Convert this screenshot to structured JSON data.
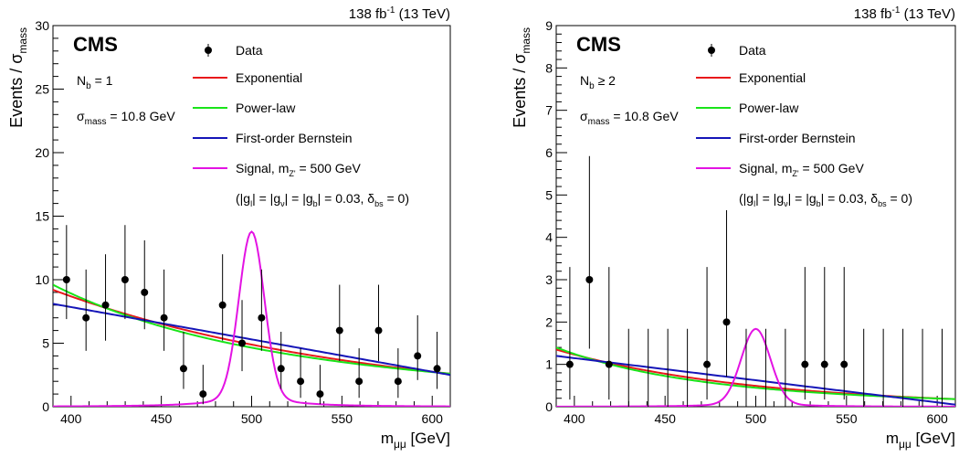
{
  "chart_data": [
    {
      "type": "scatter",
      "lumi_text": "138 fb",
      "lumi_sup": "-1",
      "energy_text": " (13 TeV)",
      "experiment": "CMS",
      "category_text": "N",
      "category_sub": "b",
      "category_value": " = 1",
      "sigma_symbol": "σ",
      "sigma_sub": "mass",
      "sigma_value": " = 10.8 GeV",
      "ylabel_main": "Events / σ",
      "ylabel_sub": "mass",
      "xlabel_main": "m",
      "xlabel_sub": "μμ",
      "xlabel_unit": " [GeV]",
      "xlim": [
        390,
        610
      ],
      "ylim": [
        0,
        30
      ],
      "xticks": [
        400,
        450,
        500,
        550,
        600
      ],
      "yticks": [
        0,
        5,
        10,
        15,
        20,
        25,
        30
      ],
      "legend": {
        "data": "Data",
        "exponential": "Exponential",
        "powerlaw": "Power-law",
        "bernstein": "First-order Bernstein",
        "signal_prefix": "Signal, m",
        "signal_sub": "Z'",
        "signal_suffix": " = 500 GeV",
        "couplings": "(|g_l| = |g_ν| = |g_b| = 0.03, δ_bs = 0)"
      },
      "colors": {
        "exponential": "#e8191b",
        "powerlaw": "#19e419",
        "bernstein": "#1515b8",
        "signal": "#e313e3",
        "data": "#000000"
      },
      "data": {
        "x": [
          397.5,
          408.3,
          419.1,
          429.9,
          440.7,
          451.5,
          462.3,
          473.1,
          483.9,
          494.7,
          505.5,
          516.3,
          527.1,
          537.9,
          548.7,
          559.5,
          570.3,
          581.1,
          591.9,
          602.7
        ],
        "y": [
          10,
          7,
          8,
          10,
          9,
          7,
          3,
          1,
          8,
          5,
          7,
          3,
          2,
          1,
          6,
          2,
          6,
          2,
          4,
          3
        ],
        "err_low": [
          3.1,
          2.6,
          2.8,
          3.1,
          2.9,
          2.6,
          1.6,
          0.8,
          2.8,
          2.2,
          2.6,
          1.6,
          1.3,
          0.8,
          2.4,
          1.3,
          2.4,
          1.3,
          1.9,
          1.6
        ],
        "err_high": [
          4.3,
          3.8,
          4.0,
          4.3,
          4.1,
          3.8,
          2.9,
          2.3,
          4.0,
          3.4,
          3.8,
          2.9,
          2.6,
          2.3,
          3.6,
          2.6,
          3.6,
          2.6,
          3.2,
          2.9
        ]
      },
      "fits": {
        "exponential": {
          "a": 9.2,
          "b": 2.6
        },
        "powerlaw": {
          "a": 9.6,
          "b": 2.6
        },
        "bernstein": {
          "a": 8.1,
          "b": 2.5
        }
      },
      "signal": {
        "mass": 500,
        "amplitude": 13.0,
        "core_sigma": 7.0,
        "tail_width": 22,
        "tail_amp": 0.06
      }
    },
    {
      "type": "scatter",
      "lumi_text": "138 fb",
      "lumi_sup": "-1",
      "energy_text": " (13 TeV)",
      "experiment": "CMS",
      "category_text": "N",
      "category_sub": "b",
      "category_value": " ≥ 2",
      "sigma_symbol": "σ",
      "sigma_sub": "mass",
      "sigma_value": " = 10.8 GeV",
      "ylabel_main": "Events / σ",
      "ylabel_sub": "mass",
      "xlabel_main": "m",
      "xlabel_sub": "μμ",
      "xlabel_unit": " [GeV]",
      "xlim": [
        390,
        610
      ],
      "ylim": [
        0,
        9
      ],
      "xticks": [
        400,
        450,
        500,
        550,
        600
      ],
      "yticks": [
        0,
        1,
        2,
        3,
        4,
        5,
        6,
        7,
        8,
        9
      ],
      "legend": {
        "data": "Data",
        "exponential": "Exponential",
        "powerlaw": "Power-law",
        "bernstein": "First-order Bernstein",
        "signal_prefix": "Signal, m",
        "signal_sub": "Z'",
        "signal_suffix": " = 500 GeV",
        "couplings": "(|g_l| = |g_ν| = |g_b| = 0.03, δ_bs = 0)"
      },
      "colors": {
        "exponential": "#e8191b",
        "powerlaw": "#19e419",
        "bernstein": "#1515b8",
        "signal": "#e313e3",
        "data": "#000000"
      },
      "data": {
        "x": [
          397.5,
          408.3,
          419.1,
          429.9,
          440.7,
          451.5,
          462.3,
          473.1,
          483.9,
          494.7,
          505.5,
          516.3,
          527.1,
          537.9,
          548.7,
          559.5,
          570.3,
          581.1,
          591.9,
          602.7
        ],
        "y": [
          1,
          3,
          1,
          0,
          0,
          0,
          0,
          1,
          2,
          0,
          0,
          0,
          1,
          1,
          1,
          0,
          0,
          0,
          0,
          0
        ],
        "err_low": [
          0.83,
          1.63,
          0.83,
          0,
          0,
          0,
          0,
          0.83,
          1.29,
          0,
          0,
          0,
          0.83,
          0.83,
          0.83,
          0,
          0,
          0,
          0,
          0
        ],
        "err_high": [
          2.3,
          2.92,
          2.3,
          1.84,
          1.84,
          1.84,
          1.84,
          2.3,
          2.64,
          1.84,
          1.84,
          1.84,
          2.3,
          2.3,
          2.3,
          1.84,
          1.84,
          1.84,
          1.84,
          1.84
        ]
      },
      "fits": {
        "exponential": {
          "a": 1.35,
          "b": 0.18
        },
        "powerlaw": {
          "a": 1.4,
          "b": 0.18
        },
        "bernstein": {
          "a": 1.2,
          "b": 0.05
        }
      },
      "signal": {
        "mass": 500,
        "amplitude": 1.75,
        "core_sigma": 8.0,
        "tail_width": 22,
        "tail_amp": 0.05
      }
    }
  ]
}
